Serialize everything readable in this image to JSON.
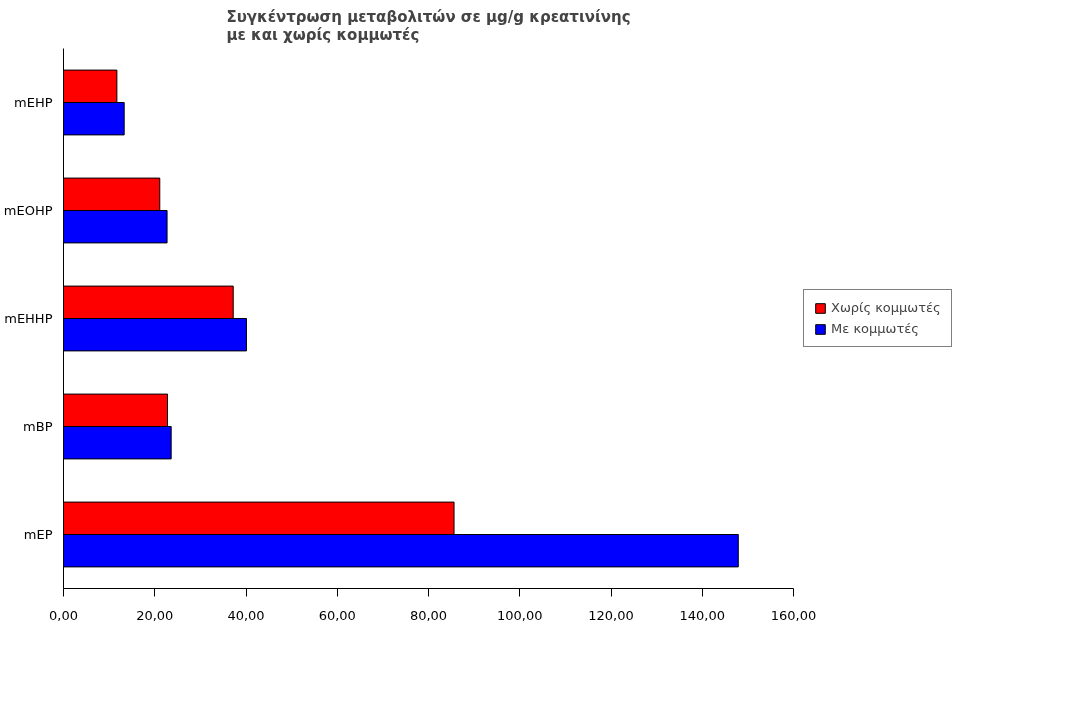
{
  "chart_data": {
    "type": "bar",
    "orientation": "horizontal",
    "title": "Συγκέντρωση μεταβολιτών σε μg/g κρεατινίνης\nμε και χωρίς κομμωτές",
    "categories": [
      "mEHP",
      "mEOHP",
      "mEHHP",
      "mBP",
      "mEP"
    ],
    "series": [
      {
        "name": "Χωρίς κομμωτές",
        "color": "#ff0000",
        "values": [
          11.7,
          21.1,
          37.2,
          22.8,
          85.6
        ]
      },
      {
        "name": "Με κομμωτές",
        "color": "#0000ff",
        "values": [
          13.3,
          22.7,
          40.1,
          23.6,
          147.9
        ]
      }
    ],
    "xlim": [
      0,
      160
    ],
    "xticks": [
      {
        "value": 0,
        "label": "0,00"
      },
      {
        "value": 20,
        "label": "20,00"
      },
      {
        "value": 40,
        "label": "40,00"
      },
      {
        "value": 60,
        "label": "60,00"
      },
      {
        "value": 80,
        "label": "80,00"
      },
      {
        "value": 100,
        "label": "100,00"
      },
      {
        "value": 120,
        "label": "120,00"
      },
      {
        "value": 140,
        "label": "140,00"
      },
      {
        "value": 160,
        "label": "160,00"
      }
    ],
    "grid": false,
    "legend": "right"
  }
}
